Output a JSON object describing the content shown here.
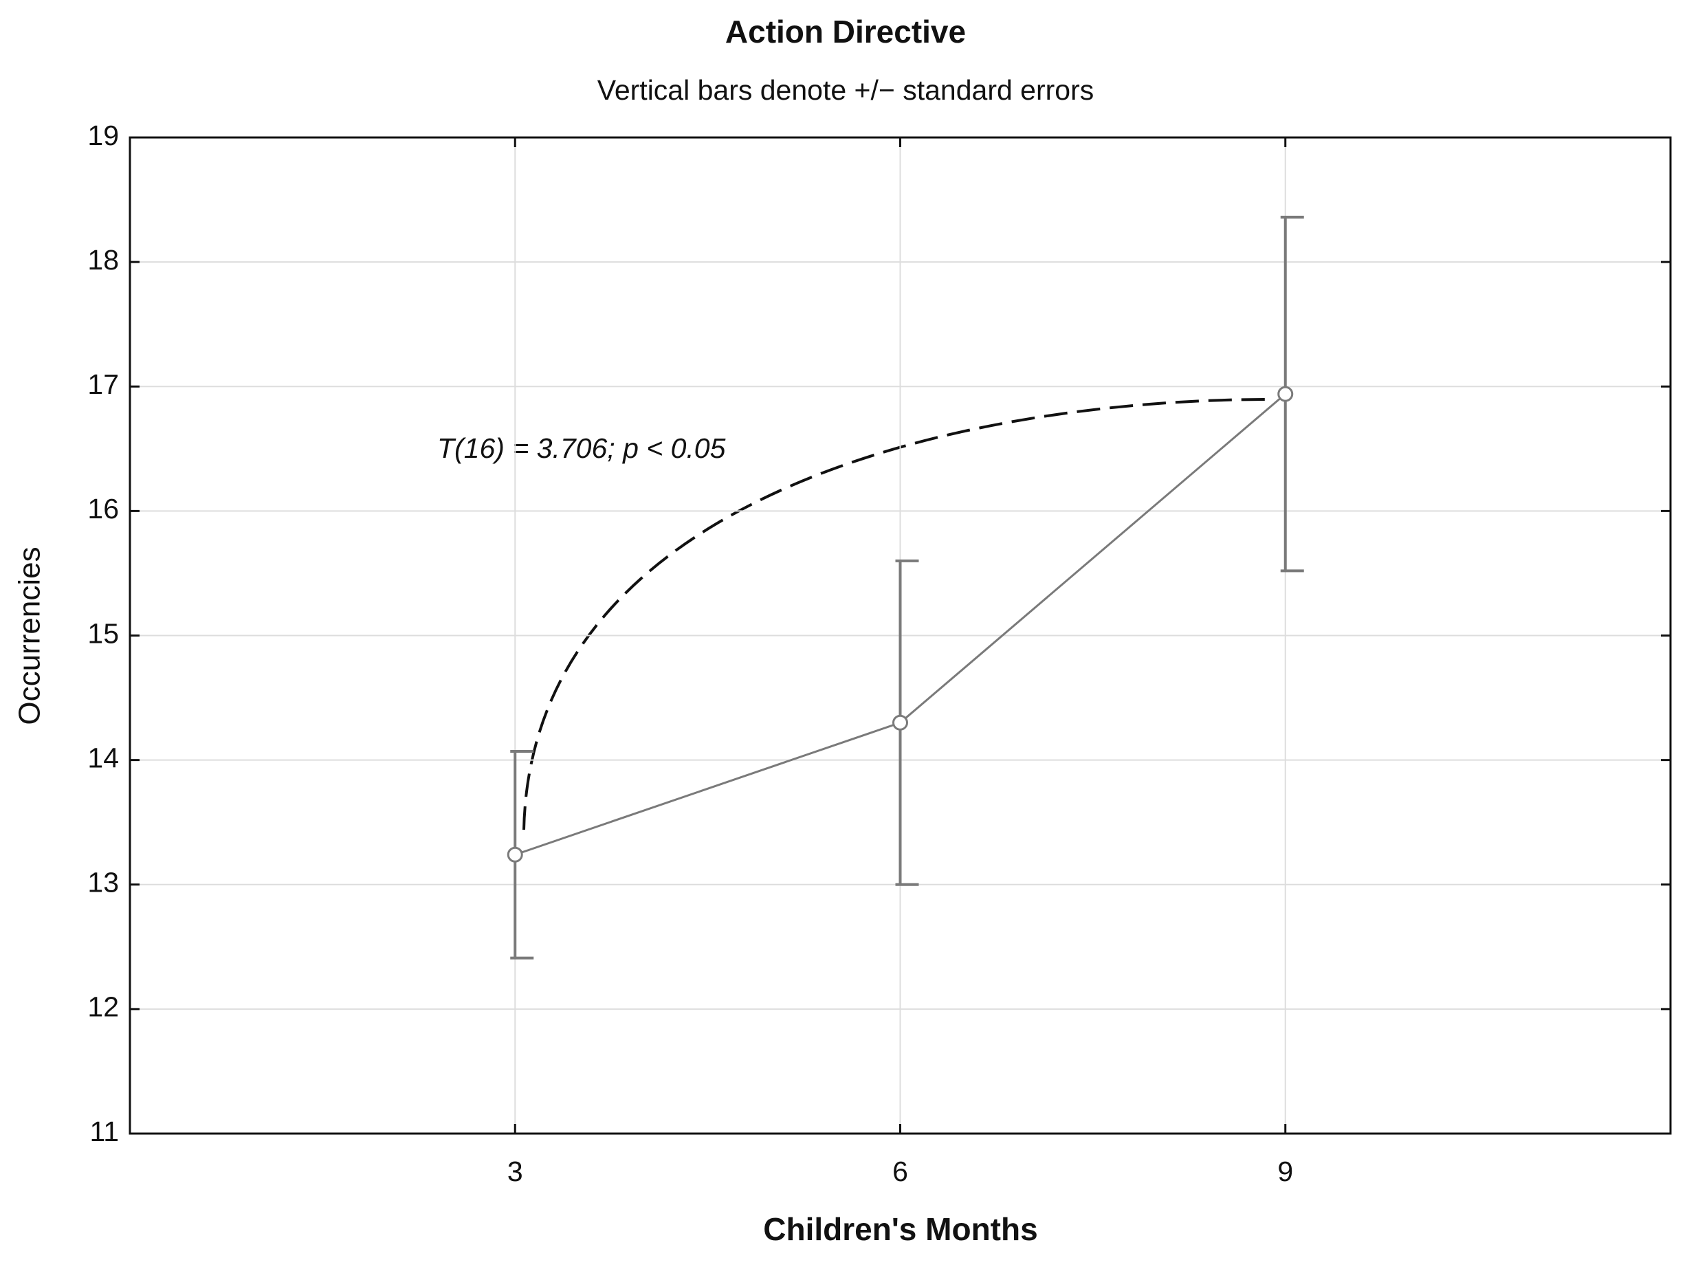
{
  "chart_data": {
    "type": "line",
    "title": "Action Directive",
    "subtitle": "Vertical bars denote +/− standard errors",
    "annotation": "T(16) = 3.706; p < 0.05",
    "x_label": "Children's Months",
    "y_label": "Occurrencies",
    "x": [
      3,
      6,
      9
    ],
    "values": [
      13.24,
      14.3,
      16.94
    ],
    "errors": [
      0.83,
      1.3,
      1.42
    ],
    "color": "#7a7a7a",
    "xlim": [
      0,
      12
    ],
    "xticks": [
      3,
      6,
      9
    ],
    "ylim": [
      11,
      19
    ],
    "yticks": [
      11,
      12,
      13,
      14,
      15,
      16,
      17,
      18,
      19
    ],
    "grid": true
  }
}
